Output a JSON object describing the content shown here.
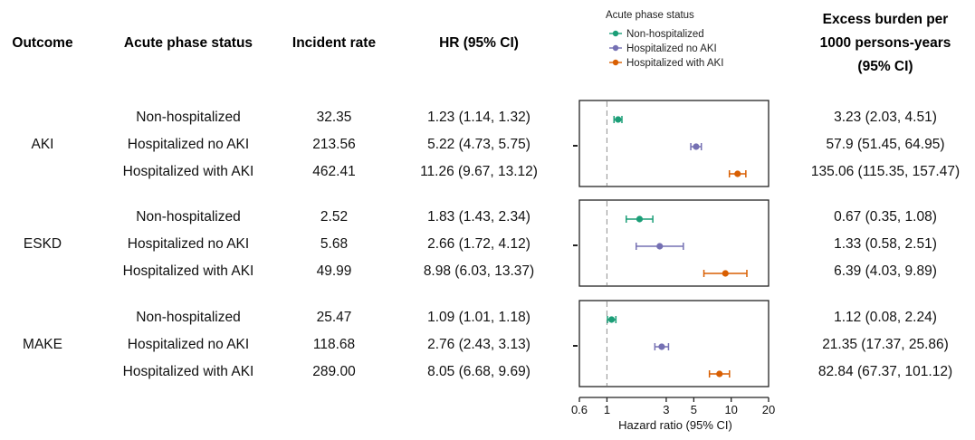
{
  "chart_data": {
    "type": "forest",
    "columns": {
      "outcome": "Outcome",
      "status": "Acute phase status",
      "rate": "Incident rate",
      "hr": "HR (95% CI)",
      "excess": [
        "Excess burden per",
        "1000 persons-years",
        "(95% CI)"
      ]
    },
    "legend": {
      "title": "Acute phase status",
      "entries": [
        {
          "name": "Non-hospitalized",
          "color": "#1b9e77"
        },
        {
          "name": "Hospitalized no AKI",
          "color": "#7570b3"
        },
        {
          "name": "Hospitalized with AKI",
          "color": "#d95f02"
        }
      ]
    },
    "x_axis": {
      "label": "Hazard ratio (95% CI)",
      "scale": "log",
      "range": [
        0.6,
        20
      ],
      "ticks": [
        0.6,
        1,
        3,
        5,
        10,
        20
      ],
      "tick_labels": [
        "0.6",
        "1",
        "3",
        "5",
        "10",
        "20"
      ],
      "reference_line": 1
    },
    "groups": [
      {
        "outcome": "AKI",
        "rows": [
          {
            "status": "Non-hospitalized",
            "rate": "32.35",
            "hr_text": "1.23 (1.14, 1.32)",
            "hr": 1.23,
            "lo": 1.14,
            "hi": 1.32,
            "excess": "3.23 (2.03, 4.51)"
          },
          {
            "status": "Hospitalized no AKI",
            "rate": "213.56",
            "hr_text": "5.22 (4.73, 5.75)",
            "hr": 5.22,
            "lo": 4.73,
            "hi": 5.75,
            "excess": "57.9 (51.45, 64.95)"
          },
          {
            "status": "Hospitalized with AKI",
            "rate": "462.41",
            "hr_text": "11.26 (9.67, 13.12)",
            "hr": 11.26,
            "lo": 9.67,
            "hi": 13.12,
            "excess": "135.06 (115.35, 157.47)"
          }
        ]
      },
      {
        "outcome": "ESKD",
        "rows": [
          {
            "status": "Non-hospitalized",
            "rate": "2.52",
            "hr_text": "1.83 (1.43, 2.34)",
            "hr": 1.83,
            "lo": 1.43,
            "hi": 2.34,
            "excess": "0.67 (0.35, 1.08)"
          },
          {
            "status": "Hospitalized no AKI",
            "rate": "5.68",
            "hr_text": "2.66 (1.72, 4.12)",
            "hr": 2.66,
            "lo": 1.72,
            "hi": 4.12,
            "excess": "1.33 (0.58, 2.51)"
          },
          {
            "status": "Hospitalized with AKI",
            "rate": "49.99",
            "hr_text": "8.98 (6.03, 13.37)",
            "hr": 8.98,
            "lo": 6.03,
            "hi": 13.37,
            "excess": "6.39 (4.03, 9.89)"
          }
        ]
      },
      {
        "outcome": "MAKE",
        "rows": [
          {
            "status": "Non-hospitalized",
            "rate": "25.47",
            "hr_text": "1.09 (1.01, 1.18)",
            "hr": 1.09,
            "lo": 1.01,
            "hi": 1.18,
            "excess": "1.12 (0.08, 2.24)"
          },
          {
            "status": "Hospitalized no AKI",
            "rate": "118.68",
            "hr_text": "2.76 (2.43, 3.13)",
            "hr": 2.76,
            "lo": 2.43,
            "hi": 3.13,
            "excess": "21.35 (17.37, 25.86)"
          },
          {
            "status": "Hospitalized with AKI",
            "rate": "289.00",
            "hr_text": "8.05 (6.68, 9.69)",
            "hr": 8.05,
            "lo": 6.68,
            "hi": 9.69,
            "excess": "82.84 (67.37, 101.12)"
          }
        ]
      }
    ]
  }
}
